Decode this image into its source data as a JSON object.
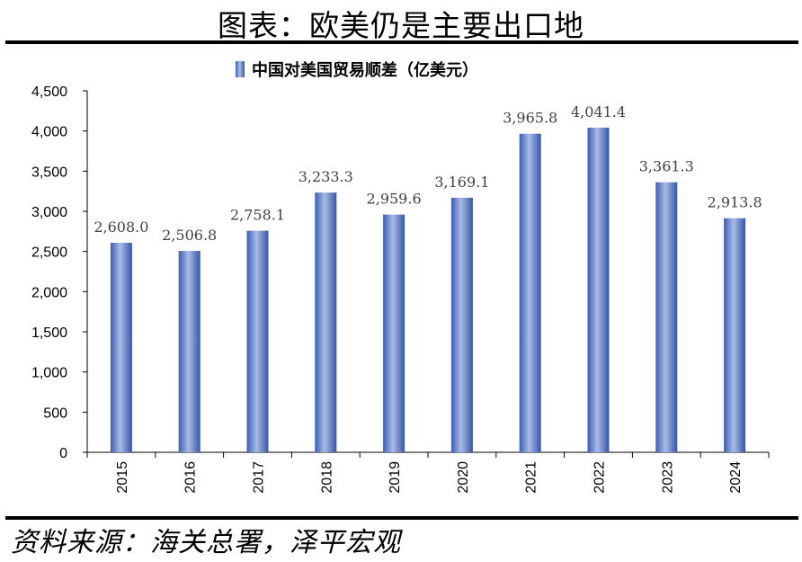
{
  "figure": {
    "title": "图表：欧美仍是主要出口地",
    "source": "资料来源：海关总署，泽平宏观"
  },
  "chart_data": {
    "type": "bar",
    "categories": [
      "2015",
      "2016",
      "2017",
      "2018",
      "2019",
      "2020",
      "2021",
      "2022",
      "2023",
      "2024"
    ],
    "series": [
      {
        "name": "中国对美国贸易顺差（亿美元）",
        "values": [
          2608.0,
          2506.8,
          2758.1,
          3233.3,
          2959.6,
          3169.1,
          3965.8,
          4041.4,
          3361.3,
          2913.8
        ],
        "labels": [
          "2,608.0",
          "2,506.8",
          "2,758.1",
          "3,233.3",
          "2,959.6",
          "3,169.1",
          "3,965.8",
          "4,041.4",
          "3,361.3",
          "2,913.8"
        ]
      }
    ],
    "yticks": [
      "0",
      "500",
      "1,000",
      "1,500",
      "2,000",
      "2,500",
      "3,000",
      "3,500",
      "4,000",
      "4,500"
    ],
    "ylim": [
      0,
      4500
    ],
    "legend_position": "top",
    "grid": false,
    "colors": {
      "bar_light": "#a9bce6",
      "bar_mid": "#5b7fd0",
      "bar_dark": "#3556a8"
    }
  }
}
